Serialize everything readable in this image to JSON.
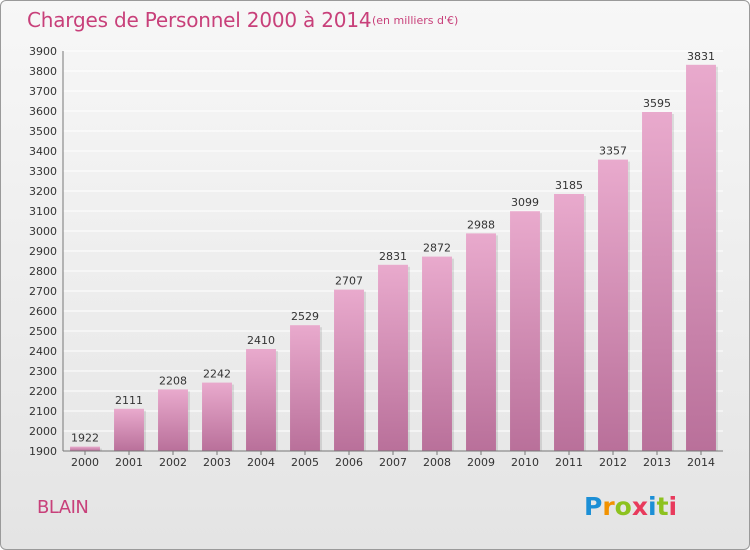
{
  "header": {
    "title": "Charges de Personnel 2000 à 2014",
    "subtitle": "(en milliers d'€)"
  },
  "footer": {
    "commune": "BLAIN",
    "logo_text": "Proxiti",
    "logo_colors": [
      "#1c8fd6",
      "#f29200",
      "#8dc21f",
      "#e83a5c",
      "#1c8fd6",
      "#8dc21f",
      "#e83a5c"
    ]
  },
  "colors": {
    "accent": "#c8407a",
    "bar_top": "#e9aacd",
    "bar_bottom": "#b9709a"
  },
  "chart_data": {
    "type": "bar",
    "title": "Charges de Personnel 2000 à 2014",
    "subtitle": "(en milliers d'€)",
    "categories": [
      "2000",
      "2001",
      "2002",
      "2003",
      "2004",
      "2005",
      "2006",
      "2007",
      "2008",
      "2009",
      "2010",
      "2011",
      "2012",
      "2013",
      "2014"
    ],
    "values": [
      1922,
      2111,
      2208,
      2242,
      2410,
      2529,
      2707,
      2831,
      2872,
      2988,
      3099,
      3185,
      3357,
      3595,
      3831
    ],
    "ylim": [
      1900,
      3900
    ],
    "ytick_step": 100,
    "grid": true,
    "xlabel": "",
    "ylabel": ""
  }
}
